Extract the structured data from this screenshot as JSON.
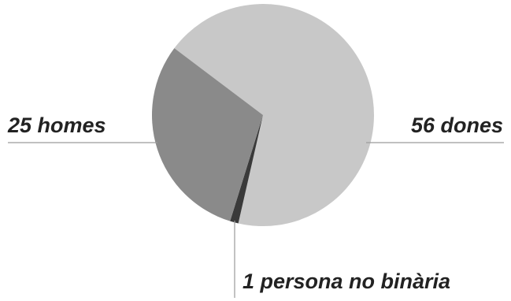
{
  "chart_data": {
    "type": "pie",
    "title": "",
    "slices": [
      {
        "label": "56 dones",
        "value": 56,
        "color": "#c8c8c8"
      },
      {
        "label": "1 persona no binària",
        "value": 1,
        "color": "#3a3a3a"
      },
      {
        "label": "25 homes",
        "value": 25,
        "color": "#8a8a8a"
      }
    ],
    "labels": {
      "women": "56 dones",
      "men": "25 homes",
      "nonbinary": "1 persona no binària"
    },
    "leader_line_color": "#9a9a9a",
    "legend": "none"
  }
}
